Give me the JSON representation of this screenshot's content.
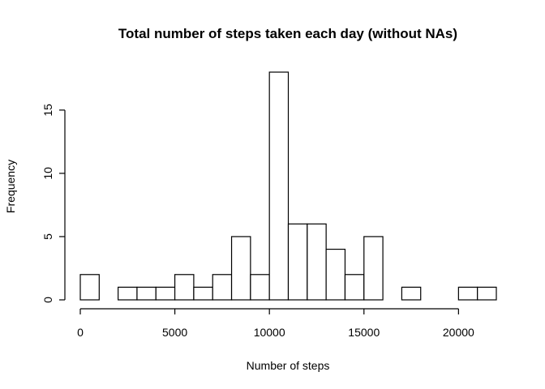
{
  "chart_data": {
    "type": "bar",
    "title": "Total number of steps taken each day (without NAs)",
    "xlabel": "Number of steps",
    "ylabel": "Frequency",
    "bins": [
      {
        "x0": 0,
        "x1": 1000,
        "count": 2
      },
      {
        "x0": 1000,
        "x1": 2000,
        "count": 0
      },
      {
        "x0": 2000,
        "x1": 3000,
        "count": 1
      },
      {
        "x0": 3000,
        "x1": 4000,
        "count": 1
      },
      {
        "x0": 4000,
        "x1": 5000,
        "count": 1
      },
      {
        "x0": 5000,
        "x1": 6000,
        "count": 2
      },
      {
        "x0": 6000,
        "x1": 7000,
        "count": 1
      },
      {
        "x0": 7000,
        "x1": 8000,
        "count": 2
      },
      {
        "x0": 8000,
        "x1": 9000,
        "count": 5
      },
      {
        "x0": 9000,
        "x1": 10000,
        "count": 2
      },
      {
        "x0": 10000,
        "x1": 11000,
        "count": 18
      },
      {
        "x0": 11000,
        "x1": 12000,
        "count": 6
      },
      {
        "x0": 12000,
        "x1": 13000,
        "count": 6
      },
      {
        "x0": 13000,
        "x1": 14000,
        "count": 4
      },
      {
        "x0": 14000,
        "x1": 15000,
        "count": 2
      },
      {
        "x0": 15000,
        "x1": 16000,
        "count": 5
      },
      {
        "x0": 16000,
        "x1": 17000,
        "count": 0
      },
      {
        "x0": 17000,
        "x1": 18000,
        "count": 1
      },
      {
        "x0": 18000,
        "x1": 19000,
        "count": 0
      },
      {
        "x0": 19000,
        "x1": 20000,
        "count": 0
      },
      {
        "x0": 20000,
        "x1": 21000,
        "count": 1
      },
      {
        "x0": 21000,
        "x1": 22000,
        "count": 1
      }
    ],
    "xlim": [
      0,
      22000
    ],
    "ylim": [
      0,
      18
    ],
    "xticks": [
      0,
      5000,
      10000,
      15000,
      20000
    ],
    "yticks": [
      0,
      5,
      10,
      15
    ],
    "grid": false,
    "legend": "none",
    "colors": {
      "bar_fill": "#ffffff",
      "bar_stroke": "#000000"
    }
  }
}
